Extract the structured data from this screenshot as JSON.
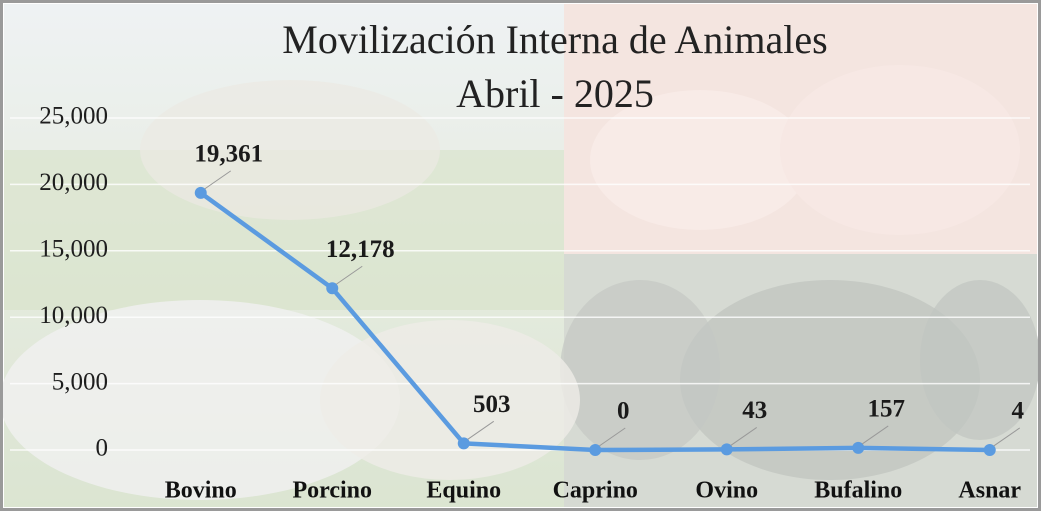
{
  "chart_data": {
    "type": "line",
    "title": "Movilización Interna de Animales",
    "subtitle": "Abril - 2025",
    "categories": [
      "Bovino",
      "Porcino",
      "Equino",
      "Caprino",
      "Ovino",
      "Bufalino",
      "Asnar"
    ],
    "values": [
      19361,
      12178,
      503,
      0,
      43,
      157,
      4
    ],
    "value_labels": [
      "19,361",
      "12,178",
      "503",
      "0",
      "43",
      "157",
      "4"
    ],
    "color": "#5b9be0",
    "ylim": [
      0,
      25000
    ],
    "yticks": [
      0,
      {
        "value": 5000,
        "label": "5,000"
      },
      {
        "value": 10000,
        "label": "10,000"
      },
      {
        "value": 15000,
        "label": "15,000"
      },
      {
        "value": 20000,
        "label": "20,000"
      },
      {
        "value": 25000,
        "label": "25,000"
      }
    ],
    "grid": true
  }
}
